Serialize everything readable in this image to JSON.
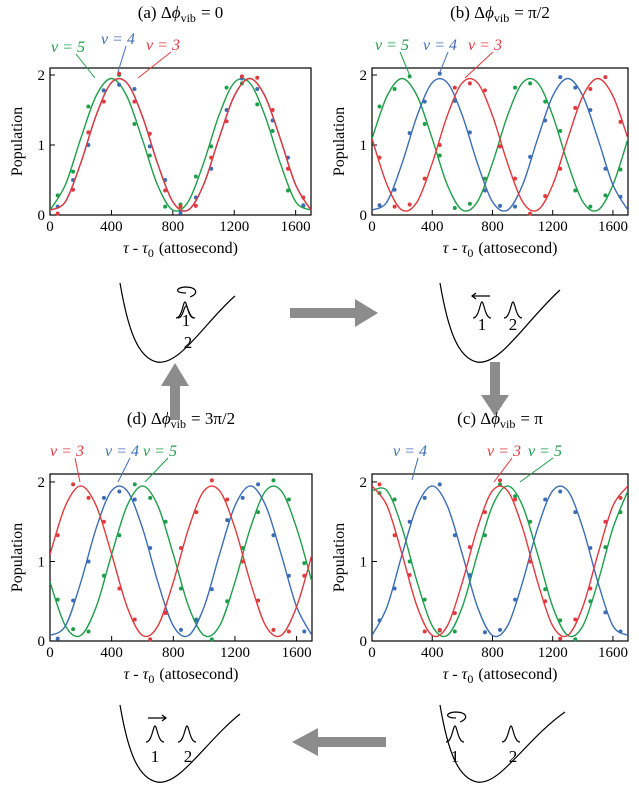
{
  "chart_data": [
    {
      "type": "scatter",
      "title": {
        "prefix": "(a) Δ",
        "symbol": "ϕ",
        "subscript": "vib",
        "suffix": "= 0"
      },
      "xlabel": {
        "symbol": "τ - τ",
        "subscript": "0",
        "unit": "(attosecond)"
      },
      "ylabel": "Population",
      "xlim": [
        0,
        1700
      ],
      "ylim": [
        0,
        2.1
      ],
      "xticks": [
        0,
        400,
        800,
        1200,
        1600
      ],
      "yticks": [
        0,
        1,
        2
      ],
      "x_fit": [
        0,
        100,
        200,
        300,
        400,
        500,
        600,
        700,
        800,
        900,
        1000,
        1100,
        1200,
        1300,
        1400,
        1500,
        1600,
        1700
      ],
      "x_points": [
        50,
        150,
        250,
        350,
        450,
        550,
        650,
        750,
        850,
        950,
        1050,
        1150,
        1250,
        1350,
        1450,
        1550,
        1650
      ],
      "series": [
        {
          "name": "v = 5",
          "color": "#1e9e4a",
          "fit": [
            0.07,
            0.43,
            1.09,
            1.7,
            1.95,
            1.7,
            1.09,
            0.43,
            0.07,
            0.19,
            0.74,
            1.42,
            1.89,
            1.89,
            1.42,
            0.74,
            0.19,
            0.07
          ],
          "points": [
            0.28,
            0.62,
            1.55,
            1.78,
            2.0,
            1.3,
            0.85,
            0.12,
            0.15,
            0.55,
            0.98,
            1.82,
            1.88,
            1.58,
            1.2,
            0.35,
            0.13
          ]
        },
        {
          "name": "v = 4",
          "color": "#3c6db4",
          "fit": [
            0.07,
            0.19,
            0.74,
            1.42,
            1.89,
            1.89,
            1.42,
            0.74,
            0.19,
            0.07,
            0.43,
            1.09,
            1.7,
            1.95,
            1.7,
            1.09,
            0.43,
            0.07
          ],
          "points": [
            0.12,
            0.5,
            1.0,
            1.78,
            1.86,
            1.8,
            0.98,
            0.5,
            0.03,
            0.25,
            0.66,
            1.5,
            1.95,
            1.8,
            1.35,
            0.82,
            0.14
          ]
        },
        {
          "name": "v = 3",
          "color": "#e03a3e",
          "fit": [
            0.07,
            0.19,
            0.74,
            1.42,
            1.89,
            1.89,
            1.42,
            0.74,
            0.19,
            0.07,
            0.43,
            1.09,
            1.7,
            1.95,
            1.7,
            1.09,
            0.43,
            0.07
          ],
          "points": [
            0.02,
            0.36,
            1.18,
            1.62,
            2.02,
            1.62,
            1.16,
            0.35,
            0.12,
            0.13,
            0.82,
            1.34,
            1.98,
            1.96,
            1.5,
            0.66,
            0.25
          ]
        }
      ]
    },
    {
      "type": "scatter",
      "title": {
        "prefix": "(b) Δ",
        "symbol": "ϕ",
        "subscript": "vib",
        "suffix": "= π/2"
      },
      "xlabel": {
        "symbol": "τ - τ",
        "subscript": "0",
        "unit": "(attosecond)"
      },
      "ylabel": "Population",
      "xlim": [
        0,
        1700
      ],
      "ylim": [
        0,
        2.1
      ],
      "xticks": [
        0,
        400,
        800,
        1200,
        1600
      ],
      "yticks": [
        0,
        1,
        2
      ],
      "x_fit": [
        0,
        100,
        200,
        300,
        400,
        500,
        600,
        700,
        800,
        900,
        1000,
        1100,
        1200,
        1300,
        1400,
        1500,
        1600,
        1700
      ],
      "x_points": [
        50,
        150,
        250,
        350,
        450,
        550,
        650,
        750,
        850,
        950,
        1050,
        1150,
        1250,
        1350,
        1450,
        1550,
        1650
      ],
      "series": [
        {
          "name": "v = 5",
          "color": "#1e9e4a",
          "fit": [
            1.09,
            1.7,
            1.95,
            1.7,
            1.09,
            0.43,
            0.07,
            0.19,
            0.74,
            1.42,
            1.89,
            1.89,
            1.42,
            0.74,
            0.19,
            0.07,
            0.43,
            1.09
          ],
          "points": [
            1.55,
            1.8,
            1.98,
            1.3,
            0.85,
            0.1,
            0.16,
            0.52,
            0.98,
            1.82,
            1.88,
            1.62,
            1.2,
            0.35,
            0.12,
            0.28,
            0.65
          ]
        },
        {
          "name": "v = 4",
          "color": "#3c6db4",
          "fit": [
            0.07,
            0.19,
            0.74,
            1.42,
            1.89,
            1.89,
            1.42,
            0.74,
            0.19,
            0.07,
            0.43,
            1.09,
            1.7,
            1.95,
            1.7,
            1.09,
            0.43,
            0.07
          ],
          "points": [
            0.14,
            0.36,
            1.17,
            1.62,
            2.02,
            1.63,
            1.18,
            0.35,
            0.13,
            0.12,
            0.83,
            1.35,
            1.97,
            1.82,
            1.5,
            0.66,
            0.26
          ]
        },
        {
          "name": "v = 3",
          "color": "#e03a3e",
          "fit": [
            1.09,
            0.43,
            0.07,
            0.19,
            0.74,
            1.42,
            1.89,
            1.89,
            1.42,
            0.74,
            0.19,
            0.07,
            0.43,
            1.09,
            1.7,
            1.95,
            1.7,
            1.09
          ],
          "points": [
            0.82,
            0.12,
            0.15,
            0.52,
            1.0,
            1.82,
            1.88,
            1.78,
            0.98,
            0.52,
            0.02,
            0.27,
            0.66,
            1.53,
            1.8,
            1.97,
            1.33
          ]
        }
      ]
    },
    {
      "type": "scatter",
      "title": {
        "prefix": "(c) Δ",
        "symbol": "ϕ",
        "subscript": "vib",
        "suffix": "= π"
      },
      "xlabel": {
        "symbol": "τ - τ",
        "subscript": "0",
        "unit": "(attosecond)"
      },
      "ylabel": "Population",
      "xlim": [
        0,
        1700
      ],
      "ylim": [
        0,
        2.1
      ],
      "xticks": [
        0,
        400,
        800,
        1200,
        1600
      ],
      "yticks": [
        0,
        1,
        2
      ],
      "x_fit": [
        0,
        100,
        200,
        300,
        400,
        500,
        600,
        700,
        800,
        900,
        1000,
        1100,
        1200,
        1300,
        1400,
        1500,
        1600,
        1700
      ],
      "x_points": [
        50,
        150,
        250,
        350,
        450,
        550,
        650,
        750,
        850,
        950,
        1050,
        1150,
        1250,
        1350,
        1450,
        1550,
        1650
      ],
      "series": [
        {
          "name": "v = 5",
          "color": "#1e9e4a",
          "fit": [
            1.89,
            1.89,
            1.42,
            0.74,
            0.19,
            0.07,
            0.43,
            1.09,
            1.7,
            1.95,
            1.7,
            1.09,
            0.43,
            0.07,
            0.19,
            0.74,
            1.42,
            1.89
          ],
          "points": [
            1.86,
            1.78,
            1.0,
            0.52,
            0.13,
            0.12,
            0.83,
            1.33,
            1.97,
            1.82,
            1.5,
            0.65,
            0.26,
            0.02,
            0.5,
            1.18,
            1.62
          ]
        },
        {
          "name": "v = 4",
          "color": "#3c6db4",
          "fit": [
            0.07,
            0.43,
            1.09,
            1.7,
            1.95,
            1.7,
            1.09,
            0.43,
            0.07,
            0.19,
            0.74,
            1.42,
            1.89,
            1.89,
            1.42,
            0.74,
            0.19,
            0.07
          ],
          "points": [
            0.26,
            0.66,
            1.5,
            1.8,
            1.97,
            1.33,
            0.82,
            0.11,
            0.14,
            0.52,
            1.0,
            1.78,
            1.88,
            1.62,
            1.17,
            0.36,
            0.12
          ]
        },
        {
          "name": "v = 3",
          "color": "#e03a3e",
          "fit": [
            1.95,
            1.7,
            1.09,
            0.43,
            0.07,
            0.19,
            0.74,
            1.42,
            1.89,
            1.89,
            1.42,
            0.74,
            0.19,
            0.07,
            0.43,
            1.09,
            1.7,
            1.95
          ],
          "points": [
            1.97,
            1.33,
            0.83,
            0.12,
            0.14,
            0.35,
            1.18,
            1.62,
            2.02,
            1.78,
            1.0,
            0.5,
            0.03,
            0.27,
            0.66,
            1.5,
            1.8
          ]
        }
      ]
    },
    {
      "type": "scatter",
      "title": {
        "prefix": "(d) Δ",
        "symbol": "ϕ",
        "subscript": "vib",
        "suffix": "= 3π/2"
      },
      "xlabel": {
        "symbol": "τ - τ",
        "subscript": "0",
        "unit": "(attosecond)"
      },
      "ylabel": "Population",
      "xlim": [
        0,
        1700
      ],
      "ylim": [
        0,
        2.1
      ],
      "xticks": [
        0,
        400,
        800,
        1200,
        1600
      ],
      "yticks": [
        0,
        1,
        2
      ],
      "x_fit": [
        0,
        100,
        200,
        300,
        400,
        500,
        600,
        700,
        800,
        900,
        1000,
        1100,
        1200,
        1300,
        1400,
        1500,
        1600,
        1700
      ],
      "x_points": [
        50,
        150,
        250,
        350,
        450,
        550,
        650,
        750,
        850,
        950,
        1050,
        1150,
        1250,
        1350,
        1450,
        1550,
        1650
      ],
      "series": [
        {
          "name": "v = 5",
          "color": "#1e9e4a",
          "fit": [
            0.74,
            0.19,
            0.07,
            0.43,
            1.09,
            1.7,
            1.95,
            1.7,
            1.09,
            0.43,
            0.07,
            0.19,
            0.74,
            1.42,
            1.89,
            1.89,
            1.42,
            0.74
          ],
          "points": [
            0.52,
            0.15,
            0.12,
            0.82,
            1.33,
            1.97,
            1.8,
            1.5,
            0.66,
            0.27,
            0.02,
            0.5,
            1.17,
            1.62,
            2.02,
            1.78,
            0.98
          ]
        },
        {
          "name": "v = 4",
          "color": "#3c6db4",
          "fit": [
            0.07,
            0.19,
            0.74,
            1.42,
            1.89,
            1.89,
            1.42,
            0.74,
            0.19,
            0.07,
            0.43,
            1.09,
            1.7,
            1.95,
            1.7,
            1.09,
            0.43,
            0.07
          ],
          "points": [
            0.03,
            0.51,
            1.0,
            1.8,
            1.88,
            1.78,
            1.17,
            0.36,
            0.14,
            0.26,
            0.65,
            1.52,
            1.8,
            1.97,
            1.33,
            0.82,
            0.12
          ]
        },
        {
          "name": "v = 3",
          "color": "#e03a3e",
          "fit": [
            1.09,
            1.7,
            1.95,
            1.7,
            1.09,
            0.43,
            0.07,
            0.19,
            0.74,
            1.42,
            1.89,
            1.89,
            1.42,
            0.74,
            0.19,
            0.07,
            0.43,
            1.09
          ],
          "points": [
            1.33,
            1.97,
            1.8,
            1.5,
            0.66,
            0.27,
            0.02,
            0.35,
            1.17,
            1.62,
            2.02,
            1.78,
            1.0,
            0.51,
            0.14,
            0.12,
            0.82
          ]
        }
      ]
    }
  ],
  "schematics": [
    {
      "labels": [
        "1",
        "2"
      ]
    },
    {
      "labels": [
        "1",
        "2"
      ]
    },
    {
      "labels": [
        "1",
        "2"
      ]
    },
    {
      "labels": [
        "1",
        "2"
      ]
    }
  ]
}
